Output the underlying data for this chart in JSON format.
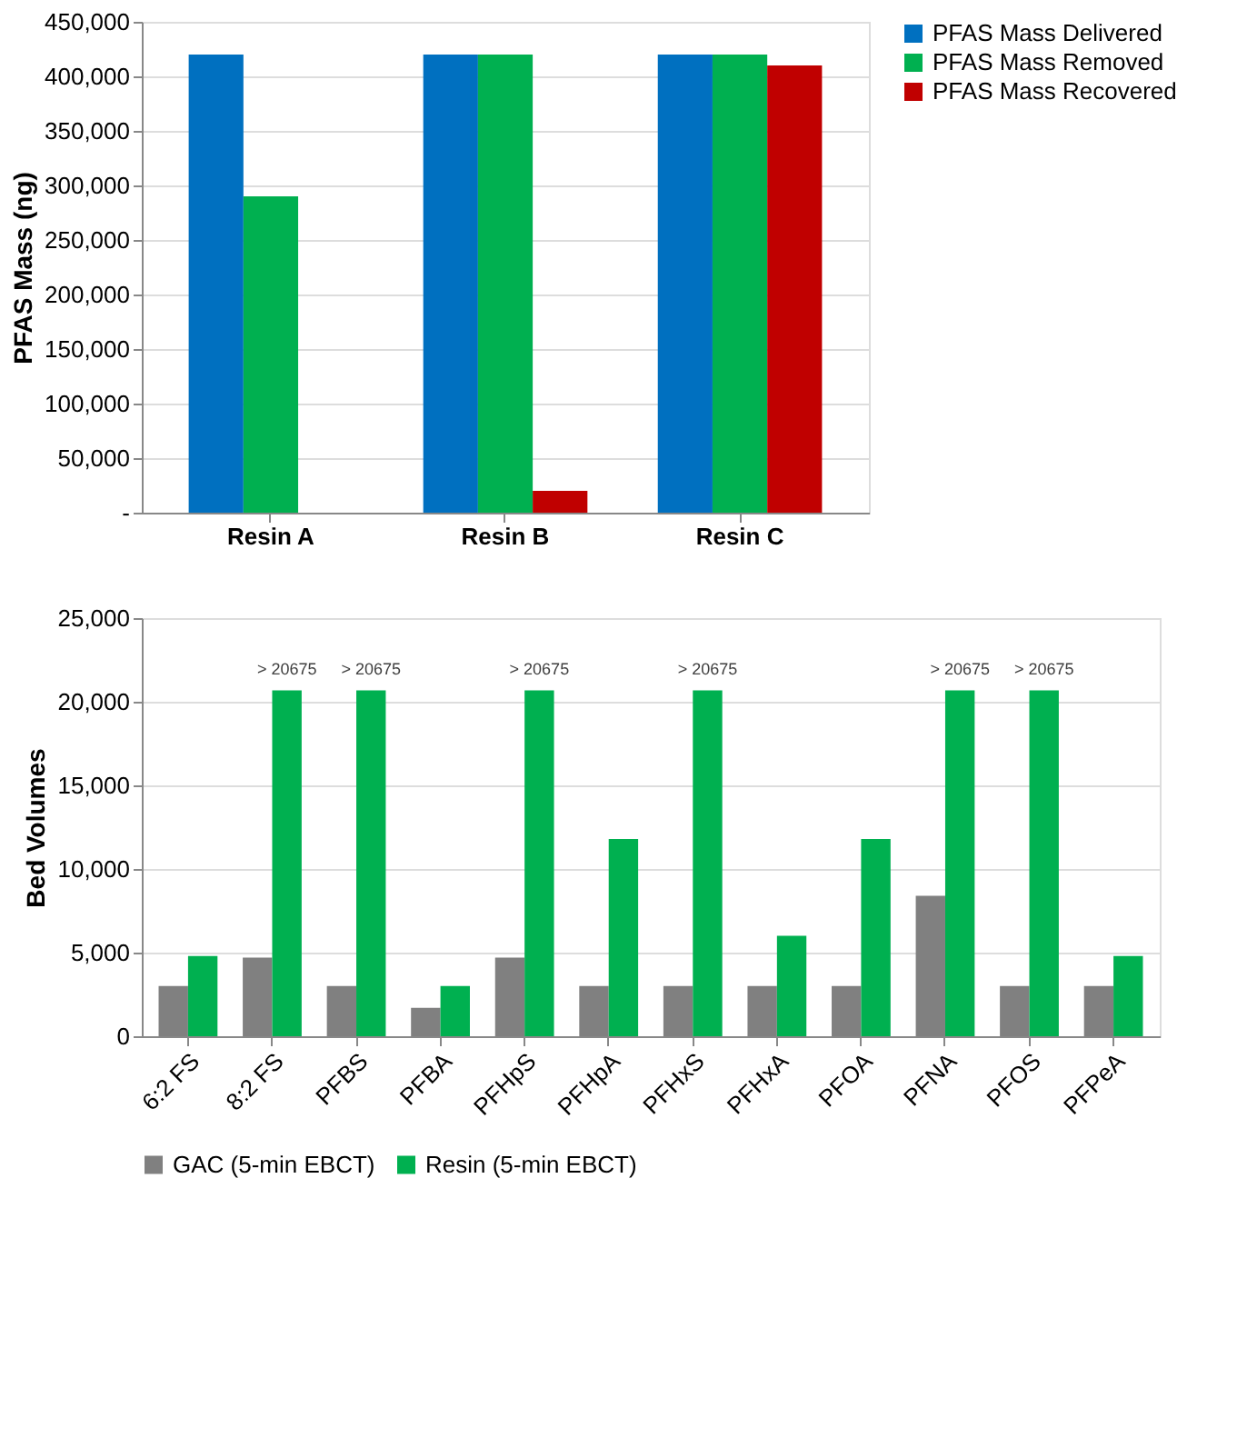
{
  "chart_data": [
    {
      "type": "bar",
      "ylabel": "PFAS Mass (ng)",
      "categories": [
        "Resin A",
        "Resin B",
        "Resin C"
      ],
      "series": [
        {
          "name": "PFAS Mass Delivered",
          "color": "#0070c0",
          "values": [
            420000,
            420000,
            420000
          ]
        },
        {
          "name": "PFAS Mass Removed",
          "color": "#00b050",
          "values": [
            290000,
            420000,
            420000
          ]
        },
        {
          "name": "PFAS Mass Recovered",
          "color": "#c00000",
          "values": [
            null,
            20000,
            410000
          ]
        }
      ],
      "ylim": [
        0,
        450000
      ],
      "yticks": [
        {
          "value": 0,
          "label": "-"
        },
        {
          "value": 50000,
          "label": "50,000"
        },
        {
          "value": 100000,
          "label": "100,000"
        },
        {
          "value": 150000,
          "label": "150,000"
        },
        {
          "value": 200000,
          "label": "200,000"
        },
        {
          "value": 250000,
          "label": "250,000"
        },
        {
          "value": 300000,
          "label": "300,000"
        },
        {
          "value": 350000,
          "label": "350,000"
        },
        {
          "value": 400000,
          "label": "400,000"
        },
        {
          "value": 450000,
          "label": "450,000"
        }
      ],
      "grid": "y",
      "legend": "right"
    },
    {
      "type": "bar",
      "ylabel": "Bed Volumes",
      "categories": [
        "6:2 FS",
        "8:2 FS",
        "PFBS",
        "PFBA",
        "PFHpS",
        "PFHpA",
        "PFHxS",
        "PFHxA",
        "PFOA",
        "PFNA",
        "PFOS",
        "PFPeA"
      ],
      "series": [
        {
          "name": "GAC (5-min EBCT)",
          "color": "#808080",
          "values": [
            3000,
            4700,
            3000,
            1700,
            4700,
            3000,
            3000,
            3000,
            3000,
            8400,
            3000,
            3000
          ]
        },
        {
          "name": "Resin (5-min EBCT)",
          "color": "#00b050",
          "values": [
            4800,
            20675,
            20675,
            3000,
            20675,
            11800,
            20675,
            6000,
            11800,
            20675,
            20675,
            4800
          ],
          "value_labels": [
            null,
            "> 20675",
            "> 20675",
            null,
            "> 20675",
            null,
            "> 20675",
            null,
            null,
            "> 20675",
            "> 20675",
            null
          ]
        }
      ],
      "ylim": [
        0,
        25000
      ],
      "yticks": [
        0,
        {
          "value": 5000,
          "label": "5,000"
        },
        {
          "value": 10000,
          "label": "10,000"
        },
        {
          "value": 15000,
          "label": "15,000"
        },
        {
          "value": 20000,
          "label": "20,000"
        },
        {
          "value": 25000,
          "label": "25,000"
        }
      ],
      "grid": "y",
      "legend": "bottom"
    }
  ]
}
